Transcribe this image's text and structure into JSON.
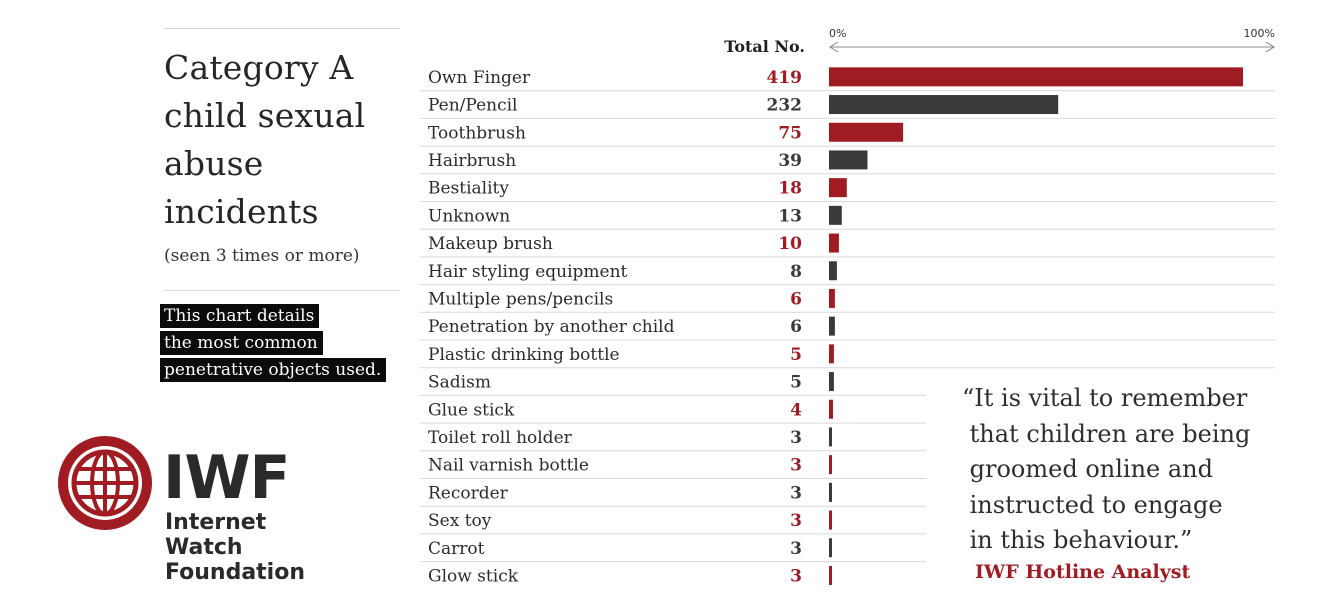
{
  "title_lines": [
    "Category A",
    "child sexual",
    "abuse",
    "incidents"
  ],
  "subtitle": "(seen 3 times or more)",
  "note_lines": [
    "This chart details",
    "the most common",
    "penetrative objects used."
  ],
  "logo": {
    "abbr": "IWF",
    "words": [
      "Internet",
      "Watch",
      "Foundation"
    ],
    "icon": "globe-icon"
  },
  "quote": {
    "text": "“It is vital to remember\n that children are being\n groomed online and\n instructed to engage\n in this behaviour.”",
    "attribution": "IWF Hotline Analyst"
  },
  "colors": {
    "red": "#a01c22",
    "dark": "#3a3a3a",
    "grid": "#d9d9d9"
  },
  "chart_data": {
    "type": "bar",
    "orientation": "horizontal",
    "column_header": "Total No.",
    "axis_labels": {
      "min": "0%",
      "max": "100%"
    },
    "xlim": [
      0,
      419
    ],
    "categories": [
      "Own Finger",
      "Pen/Pencil",
      "Toothbrush",
      "Hairbrush",
      "Bestiality",
      "Unknown",
      "Makeup brush",
      "Hair styling equipment",
      "Multiple pens/pencils",
      "Penetration by another child",
      "Plastic drinking bottle",
      "Sadism",
      "Glue stick",
      "Toilet roll holder",
      "Nail varnish bottle",
      "Recorder",
      "Sex toy",
      "Carrot",
      "Glow stick"
    ],
    "values": [
      419,
      232,
      75,
      39,
      18,
      13,
      10,
      8,
      6,
      6,
      5,
      5,
      4,
      3,
      3,
      3,
      3,
      3,
      3
    ],
    "bar_colors": [
      "red",
      "dark",
      "red",
      "dark",
      "red",
      "dark",
      "red",
      "dark",
      "red",
      "dark",
      "red",
      "dark",
      "red",
      "dark",
      "red",
      "dark",
      "red",
      "dark",
      "red"
    ]
  }
}
